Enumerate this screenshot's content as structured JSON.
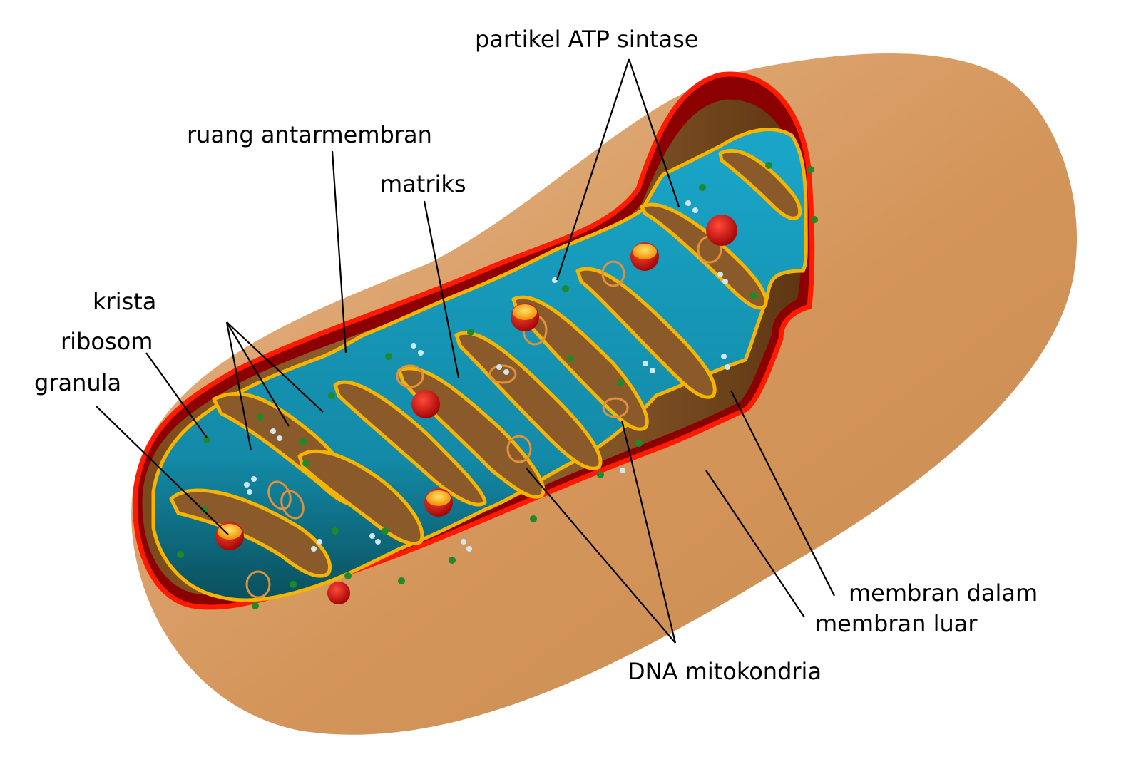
{
  "labels": {
    "atp_synthase": "partikel ATP sintase",
    "intermembrane_space": "ruang antarmembran",
    "matrix": "matriks",
    "cristae": "krista",
    "ribosome": "ribosom",
    "granule": "granula",
    "inner_membrane": "membran dalam",
    "outer_membrane": "membran luar",
    "mtdna": "DNA mitokondria"
  },
  "colors": {
    "outer_body": "#d4955a",
    "outer_membrane": "#ff1a00",
    "intermembrane": "#8b0000",
    "inner_membrane": "#f5b400",
    "matrix": "#1596b8",
    "matrix_dark": "#0a4f5c",
    "ribosome": "#1f8a2a",
    "granule": "#f7c12b",
    "dna": "#e0913a"
  }
}
